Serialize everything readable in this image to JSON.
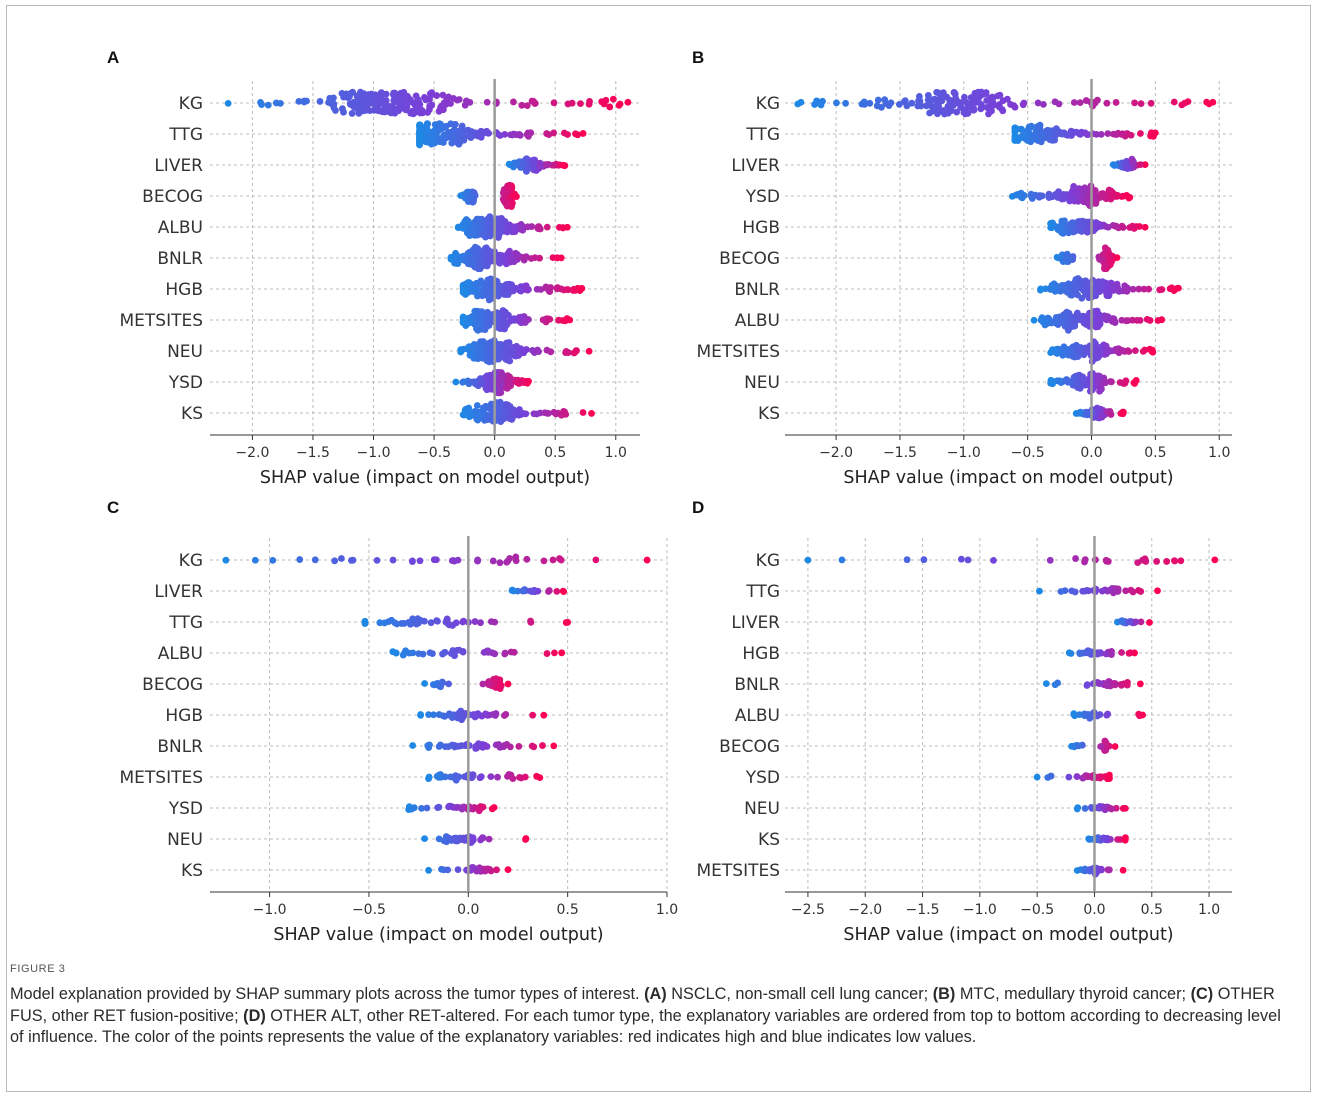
{
  "figure": {
    "label": "FIGURE 3",
    "caption": [
      {
        "t": "Model explanation provided by SHAP summary plots across the tumor types of interest. "
      },
      {
        "t": "(A)",
        "b": true
      },
      {
        "t": " NSCLC, non-small cell lung cancer; "
      },
      {
        "t": "(B)",
        "b": true
      },
      {
        "t": " MTC, medullary thyroid cancer; "
      },
      {
        "t": "(C)",
        "b": true
      },
      {
        "t": " OTHER FUS, other RET fusion-positive; "
      },
      {
        "t": "(D)",
        "b": true
      },
      {
        "t": " OTHER ALT, other RET-altered. For each tumor type, the explanatory variables are ordered from top to bottom according to decreasing level of influence. The color of the points represents the value of the explanatory variables: red indicates high and blue indicates low values."
      }
    ]
  },
  "colors": {
    "low": "#1e88e5",
    "mid": "#7a3fd8",
    "high": "#ff0052",
    "grid": "#bcbcbc",
    "zero_line": "#9b9b9b"
  },
  "chart_data": [
    {
      "type": "scatter",
      "panel": "A",
      "xlabel": "SHAP value (impact on model output)",
      "xlim": [
        -2.35,
        1.2
      ],
      "xticks": [
        -2.0,
        -1.5,
        -1.0,
        -0.5,
        0.0,
        0.5,
        1.0
      ],
      "features": [
        "KG",
        "TTG",
        "LIVER",
        "BECOG",
        "ALBU",
        "BNLR",
        "HGB",
        "METSITES",
        "NEU",
        "YSD",
        "KS"
      ],
      "series": [
        {
          "feature": "KG",
          "min": -2.2,
          "max": 1.1,
          "center": -0.9,
          "n": 210,
          "sd": 0.4
        },
        {
          "feature": "TTG",
          "min": -0.62,
          "max": 0.73,
          "center": -0.45,
          "n": 150,
          "sd": 0.3
        },
        {
          "feature": "LIVER",
          "min": 0.12,
          "max": 0.58,
          "center": 0.28,
          "n": 80,
          "sd": 0.1
        },
        {
          "feature": "BECOG",
          "min": -0.28,
          "max": 0.18,
          "center": 0.12,
          "n": 100,
          "sd": 0.09,
          "bimodal": [
            -0.2,
            0.12
          ]
        },
        {
          "feature": "ALBU",
          "min": -0.3,
          "max": 0.6,
          "center": -0.05,
          "n": 150,
          "sd": 0.2
        },
        {
          "feature": "BNLR",
          "min": -0.36,
          "max": 0.55,
          "center": -0.05,
          "n": 140,
          "sd": 0.2
        },
        {
          "feature": "HGB",
          "min": -0.26,
          "max": 0.72,
          "center": -0.05,
          "n": 140,
          "sd": 0.2
        },
        {
          "feature": "METSITES",
          "min": -0.26,
          "max": 0.62,
          "center": -0.05,
          "n": 130,
          "sd": 0.2
        },
        {
          "feature": "NEU",
          "min": -0.28,
          "max": 0.78,
          "center": 0.0,
          "n": 140,
          "sd": 0.2
        },
        {
          "feature": "YSD",
          "min": -0.32,
          "max": 0.28,
          "center": 0.02,
          "n": 130,
          "sd": 0.12
        },
        {
          "feature": "KS",
          "min": -0.26,
          "max": 0.8,
          "center": 0.0,
          "n": 120,
          "sd": 0.18
        }
      ]
    },
    {
      "type": "scatter",
      "panel": "B",
      "xlabel": "SHAP value (impact on model output)",
      "xlim": [
        -2.4,
        1.1
      ],
      "xticks": [
        -2.0,
        -1.5,
        -1.0,
        -0.5,
        0.0,
        0.5,
        1.0
      ],
      "features": [
        "KG",
        "TTG",
        "LIVER",
        "YSD",
        "HGB",
        "BECOG",
        "BNLR",
        "ALBU",
        "METSITES",
        "NEU",
        "KS"
      ],
      "series": [
        {
          "feature": "KG",
          "min": -2.3,
          "max": 0.95,
          "center": -1.0,
          "n": 160,
          "sd": 0.35
        },
        {
          "feature": "TTG",
          "min": -0.6,
          "max": 0.5,
          "center": -0.4,
          "n": 110,
          "sd": 0.22
        },
        {
          "feature": "LIVER",
          "min": 0.17,
          "max": 0.42,
          "center": 0.27,
          "n": 50,
          "sd": 0.06
        },
        {
          "feature": "YSD",
          "min": -0.62,
          "max": 0.3,
          "center": -0.05,
          "n": 130,
          "sd": 0.2
        },
        {
          "feature": "HGB",
          "min": -0.32,
          "max": 0.42,
          "center": -0.1,
          "n": 110,
          "sd": 0.18
        },
        {
          "feature": "BECOG",
          "min": -0.27,
          "max": 0.2,
          "center": 0.12,
          "n": 80,
          "sd": 0.08,
          "bimodal": [
            -0.2,
            0.12
          ]
        },
        {
          "feature": "BNLR",
          "min": -0.4,
          "max": 0.68,
          "center": -0.02,
          "n": 130,
          "sd": 0.2
        },
        {
          "feature": "ALBU",
          "min": -0.45,
          "max": 0.55,
          "center": -0.1,
          "n": 120,
          "sd": 0.2
        },
        {
          "feature": "METSITES",
          "min": -0.32,
          "max": 0.48,
          "center": -0.05,
          "n": 110,
          "sd": 0.18
        },
        {
          "feature": "NEU",
          "min": -0.32,
          "max": 0.35,
          "center": 0.0,
          "n": 100,
          "sd": 0.15
        },
        {
          "feature": "KS",
          "min": -0.12,
          "max": 0.25,
          "center": 0.05,
          "n": 60,
          "sd": 0.08
        }
      ]
    },
    {
      "type": "scatter",
      "panel": "C",
      "xlabel": "SHAP value (impact on model output)",
      "xlim": [
        -1.3,
        1.0
      ],
      "xticks": [
        -1.0,
        -0.5,
        0.0,
        0.5,
        1.0
      ],
      "features": [
        "KG",
        "LIVER",
        "TTG",
        "ALBU",
        "BECOG",
        "HGB",
        "BNLR",
        "METSITES",
        "YSD",
        "NEU",
        "KS"
      ],
      "series": [
        {
          "feature": "KG",
          "min": -1.22,
          "max": 0.9,
          "center": 0.0,
          "n": 35,
          "sd": 0.5
        },
        {
          "feature": "LIVER",
          "min": 0.22,
          "max": 0.48,
          "center": 0.3,
          "n": 18,
          "sd": 0.07
        },
        {
          "feature": "TTG",
          "min": -0.52,
          "max": 0.5,
          "center": -0.2,
          "n": 40,
          "sd": 0.25
        },
        {
          "feature": "ALBU",
          "min": -0.38,
          "max": 0.47,
          "center": -0.1,
          "n": 35,
          "sd": 0.2
        },
        {
          "feature": "BECOG",
          "min": -0.22,
          "max": 0.2,
          "center": 0.12,
          "n": 35,
          "sd": 0.08,
          "bimodal": [
            -0.15,
            0.13
          ]
        },
        {
          "feature": "HGB",
          "min": -0.24,
          "max": 0.38,
          "center": 0.0,
          "n": 40,
          "sd": 0.15
        },
        {
          "feature": "BNLR",
          "min": -0.28,
          "max": 0.43,
          "center": 0.0,
          "n": 40,
          "sd": 0.15
        },
        {
          "feature": "METSITES",
          "min": -0.2,
          "max": 0.36,
          "center": 0.0,
          "n": 40,
          "sd": 0.15
        },
        {
          "feature": "YSD",
          "min": -0.3,
          "max": 0.13,
          "center": 0.0,
          "n": 30,
          "sd": 0.1
        },
        {
          "feature": "NEU",
          "min": -0.22,
          "max": 0.29,
          "center": 0.0,
          "n": 30,
          "sd": 0.1
        },
        {
          "feature": "KS",
          "min": -0.2,
          "max": 0.2,
          "center": 0.05,
          "n": 30,
          "sd": 0.08
        }
      ]
    },
    {
      "type": "scatter",
      "panel": "D",
      "xlabel": "SHAP value (impact on model output)",
      "xlim": [
        -2.7,
        1.2
      ],
      "xticks": [
        -2.5,
        -2.0,
        -1.5,
        -1.0,
        -0.5,
        0.0,
        0.5,
        1.0
      ],
      "features": [
        "KG",
        "TTG",
        "LIVER",
        "HGB",
        "BNLR",
        "ALBU",
        "BECOG",
        "YSD",
        "NEU",
        "KS",
        "METSITES"
      ],
      "series": [
        {
          "feature": "KG",
          "min": -2.5,
          "max": 1.05,
          "center": 0.3,
          "n": 24,
          "sd": 0.4
        },
        {
          "feature": "TTG",
          "min": -0.48,
          "max": 0.55,
          "center": 0.1,
          "n": 28,
          "sd": 0.25
        },
        {
          "feature": "LIVER",
          "min": 0.2,
          "max": 0.48,
          "center": 0.28,
          "n": 15,
          "sd": 0.06
        },
        {
          "feature": "HGB",
          "min": -0.22,
          "max": 0.35,
          "center": 0.0,
          "n": 25,
          "sd": 0.15
        },
        {
          "feature": "BNLR",
          "min": -0.42,
          "max": 0.4,
          "center": 0.1,
          "n": 28,
          "sd": 0.18
        },
        {
          "feature": "ALBU",
          "min": -0.18,
          "max": 0.42,
          "center": -0.05,
          "n": 25,
          "sd": 0.15
        },
        {
          "feature": "BECOG",
          "min": -0.2,
          "max": 0.18,
          "center": 0.1,
          "n": 22,
          "sd": 0.08,
          "bimodal": [
            -0.15,
            0.1
          ]
        },
        {
          "feature": "YSD",
          "min": -0.5,
          "max": 0.13,
          "center": 0.0,
          "n": 25,
          "sd": 0.12
        },
        {
          "feature": "NEU",
          "min": -0.15,
          "max": 0.27,
          "center": 0.05,
          "n": 25,
          "sd": 0.1
        },
        {
          "feature": "KS",
          "min": -0.05,
          "max": 0.27,
          "center": 0.08,
          "n": 22,
          "sd": 0.08
        },
        {
          "feature": "METSITES",
          "min": -0.15,
          "max": 0.25,
          "center": 0.0,
          "n": 22,
          "sd": 0.08
        }
      ]
    }
  ]
}
